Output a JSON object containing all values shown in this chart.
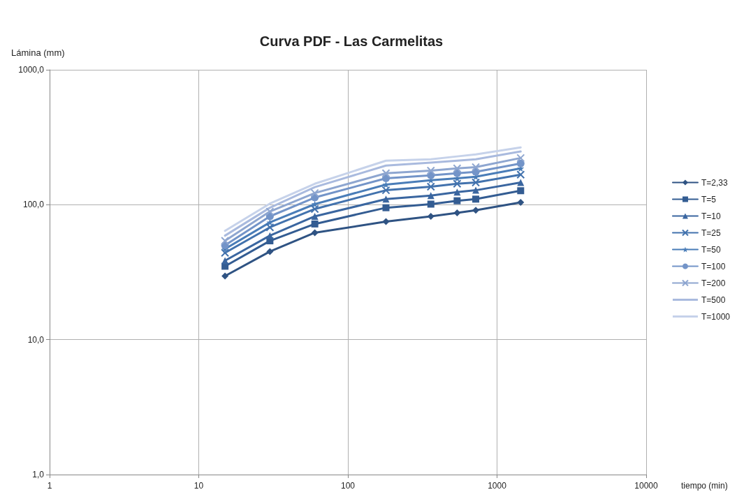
{
  "chart_data": {
    "type": "line",
    "title": "Curva PDF - Las Carmelitas",
    "xlabel": "tiempo (min)",
    "ylabel": "Lámina (mm)",
    "x": [
      15,
      30,
      60,
      180,
      360,
      540,
      720,
      1440
    ],
    "log": "xy",
    "xlim": [
      1,
      10000
    ],
    "xticks": [
      1,
      10,
      100,
      1000,
      10000
    ],
    "ylim": [
      1,
      1000
    ],
    "yticks": [
      {
        "value": 1,
        "label": "1,0"
      },
      {
        "value": 10,
        "label": "10,0"
      },
      {
        "value": 100,
        "label": "100,0"
      },
      {
        "value": 1000,
        "label": "1000,0"
      }
    ],
    "grid": true,
    "legend": "right",
    "series": [
      {
        "name": "T=2,33",
        "color": "#2f5383",
        "marker": "diamond",
        "values": [
          29.6,
          45,
          62,
          75,
          82,
          87,
          91,
          104
        ]
      },
      {
        "name": "T=5",
        "color": "#335c92",
        "marker": "square",
        "values": [
          35,
          54,
          72,
          95,
          101,
          107,
          110,
          127
        ]
      },
      {
        "name": "T=10",
        "color": "#3a66a0",
        "marker": "triangle",
        "values": [
          38.5,
          59,
          82,
          110,
          117,
          124,
          128,
          146
        ]
      },
      {
        "name": "T=25",
        "color": "#4272ad",
        "marker": "cross",
        "values": [
          44,
          68,
          93,
          128,
          136,
          143,
          146,
          167
        ]
      },
      {
        "name": "T=50",
        "color": "#4a7db8",
        "marker": "star",
        "values": [
          47,
          74,
          101,
          141,
          152,
          157,
          161,
          186
        ]
      },
      {
        "name": "T=100",
        "color": "#7394c8",
        "marker": "circle",
        "values": [
          50,
          82,
          113,
          157,
          165,
          171,
          175,
          202
        ]
      },
      {
        "name": "T=200",
        "color": "#8ea6d0",
        "marker": "cross",
        "values": [
          54,
          89,
          122,
          171,
          179,
          186,
          190,
          222
        ]
      },
      {
        "name": "T=500",
        "color": "#a9bade",
        "marker": "none",
        "values": [
          59,
          95,
          135,
          195,
          205,
          212,
          217,
          248
        ]
      },
      {
        "name": "T=1000",
        "color": "#c6d2ea",
        "marker": "none",
        "values": [
          64,
          102,
          143,
          212,
          217,
          228,
          236,
          266
        ]
      }
    ]
  }
}
